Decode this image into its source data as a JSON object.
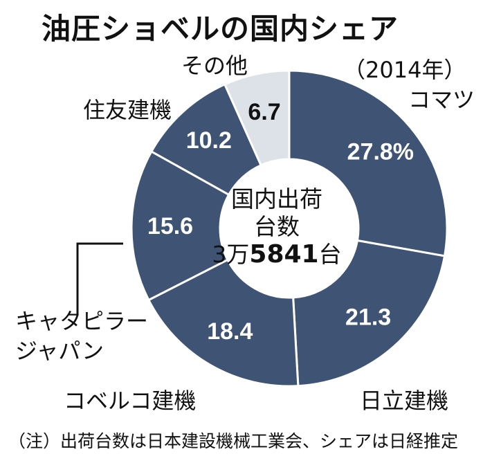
{
  "title": "油圧ショベルの国内シェア",
  "year_note": "（2014年）",
  "center": {
    "line1": "国内出荷",
    "line2": "台数",
    "value_prefix": "3万",
    "value_number": "5841",
    "value_suffix": "台"
  },
  "footnote": "（注）出荷台数は日本建設機械工業会、シェアは日経推定",
  "colors": {
    "main": "#3f5474",
    "other": "#dde1e8",
    "border": "#ffffff",
    "line": "#111111"
  },
  "chart_data": {
    "type": "pie",
    "variant": "donut",
    "unit": "%",
    "slices": [
      {
        "label": "コマツ",
        "value": 27.8,
        "value_text": "27.8%"
      },
      {
        "label": "日立建機",
        "value": 21.3,
        "value_text": "21.3"
      },
      {
        "label": "コベルコ建機",
        "value": 18.4,
        "value_text": "18.4"
      },
      {
        "label": "キャタピラージャパン",
        "label_lines": [
          "キャタピラー",
          "ジャパン"
        ],
        "value": 15.6,
        "value_text": "15.6"
      },
      {
        "label": "住友建機",
        "value": 10.2,
        "value_text": "10.2"
      },
      {
        "label": "その他",
        "value": 6.7,
        "value_text": "6.7"
      }
    ]
  }
}
